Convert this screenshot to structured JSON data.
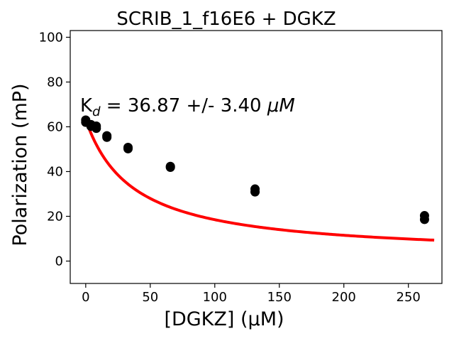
{
  "chart_data": {
    "type": "scatter",
    "title": "SCRIB_1_f16E6 + DGKZ",
    "xlabel": "[DGKZ] (μM)",
    "ylabel": "Polarization (mP)",
    "xlim": [
      -12,
      276
    ],
    "ylim": [
      -10,
      103
    ],
    "xticks": [
      0,
      50,
      100,
      150,
      200,
      250
    ],
    "yticks": [
      0,
      20,
      40,
      60,
      80,
      100
    ],
    "grid": false,
    "annotation": {
      "prefix": "K",
      "subscript": "d",
      "text": " = 36.87 +/- 3.40 ",
      "unit": "μM"
    },
    "series": [
      {
        "kind": "points",
        "color": "#000000",
        "points": [
          {
            "x": 0,
            "y": 63.0
          },
          {
            "x": 0,
            "y": 62.0
          },
          {
            "x": 4.1,
            "y": 61.0
          },
          {
            "x": 4.1,
            "y": 60.2
          },
          {
            "x": 8.2,
            "y": 60.3
          },
          {
            "x": 8.2,
            "y": 59.3
          },
          {
            "x": 16.4,
            "y": 56.0
          },
          {
            "x": 16.4,
            "y": 55.3
          },
          {
            "x": 32.8,
            "y": 50.8
          },
          {
            "x": 32.8,
            "y": 50.2
          },
          {
            "x": 65.6,
            "y": 42.3
          },
          {
            "x": 65.6,
            "y": 41.9
          },
          {
            "x": 131.2,
            "y": 32.2
          },
          {
            "x": 131.2,
            "y": 30.9
          },
          {
            "x": 262.5,
            "y": 20.3
          },
          {
            "x": 262.5,
            "y": 18.6
          }
        ]
      },
      {
        "kind": "fit-curve",
        "color": "#ff0000",
        "fit": {
          "top": 63.2,
          "bottom": 2.0,
          "kd": 36.87,
          "x_min": 0,
          "x_max": 270
        }
      }
    ]
  }
}
